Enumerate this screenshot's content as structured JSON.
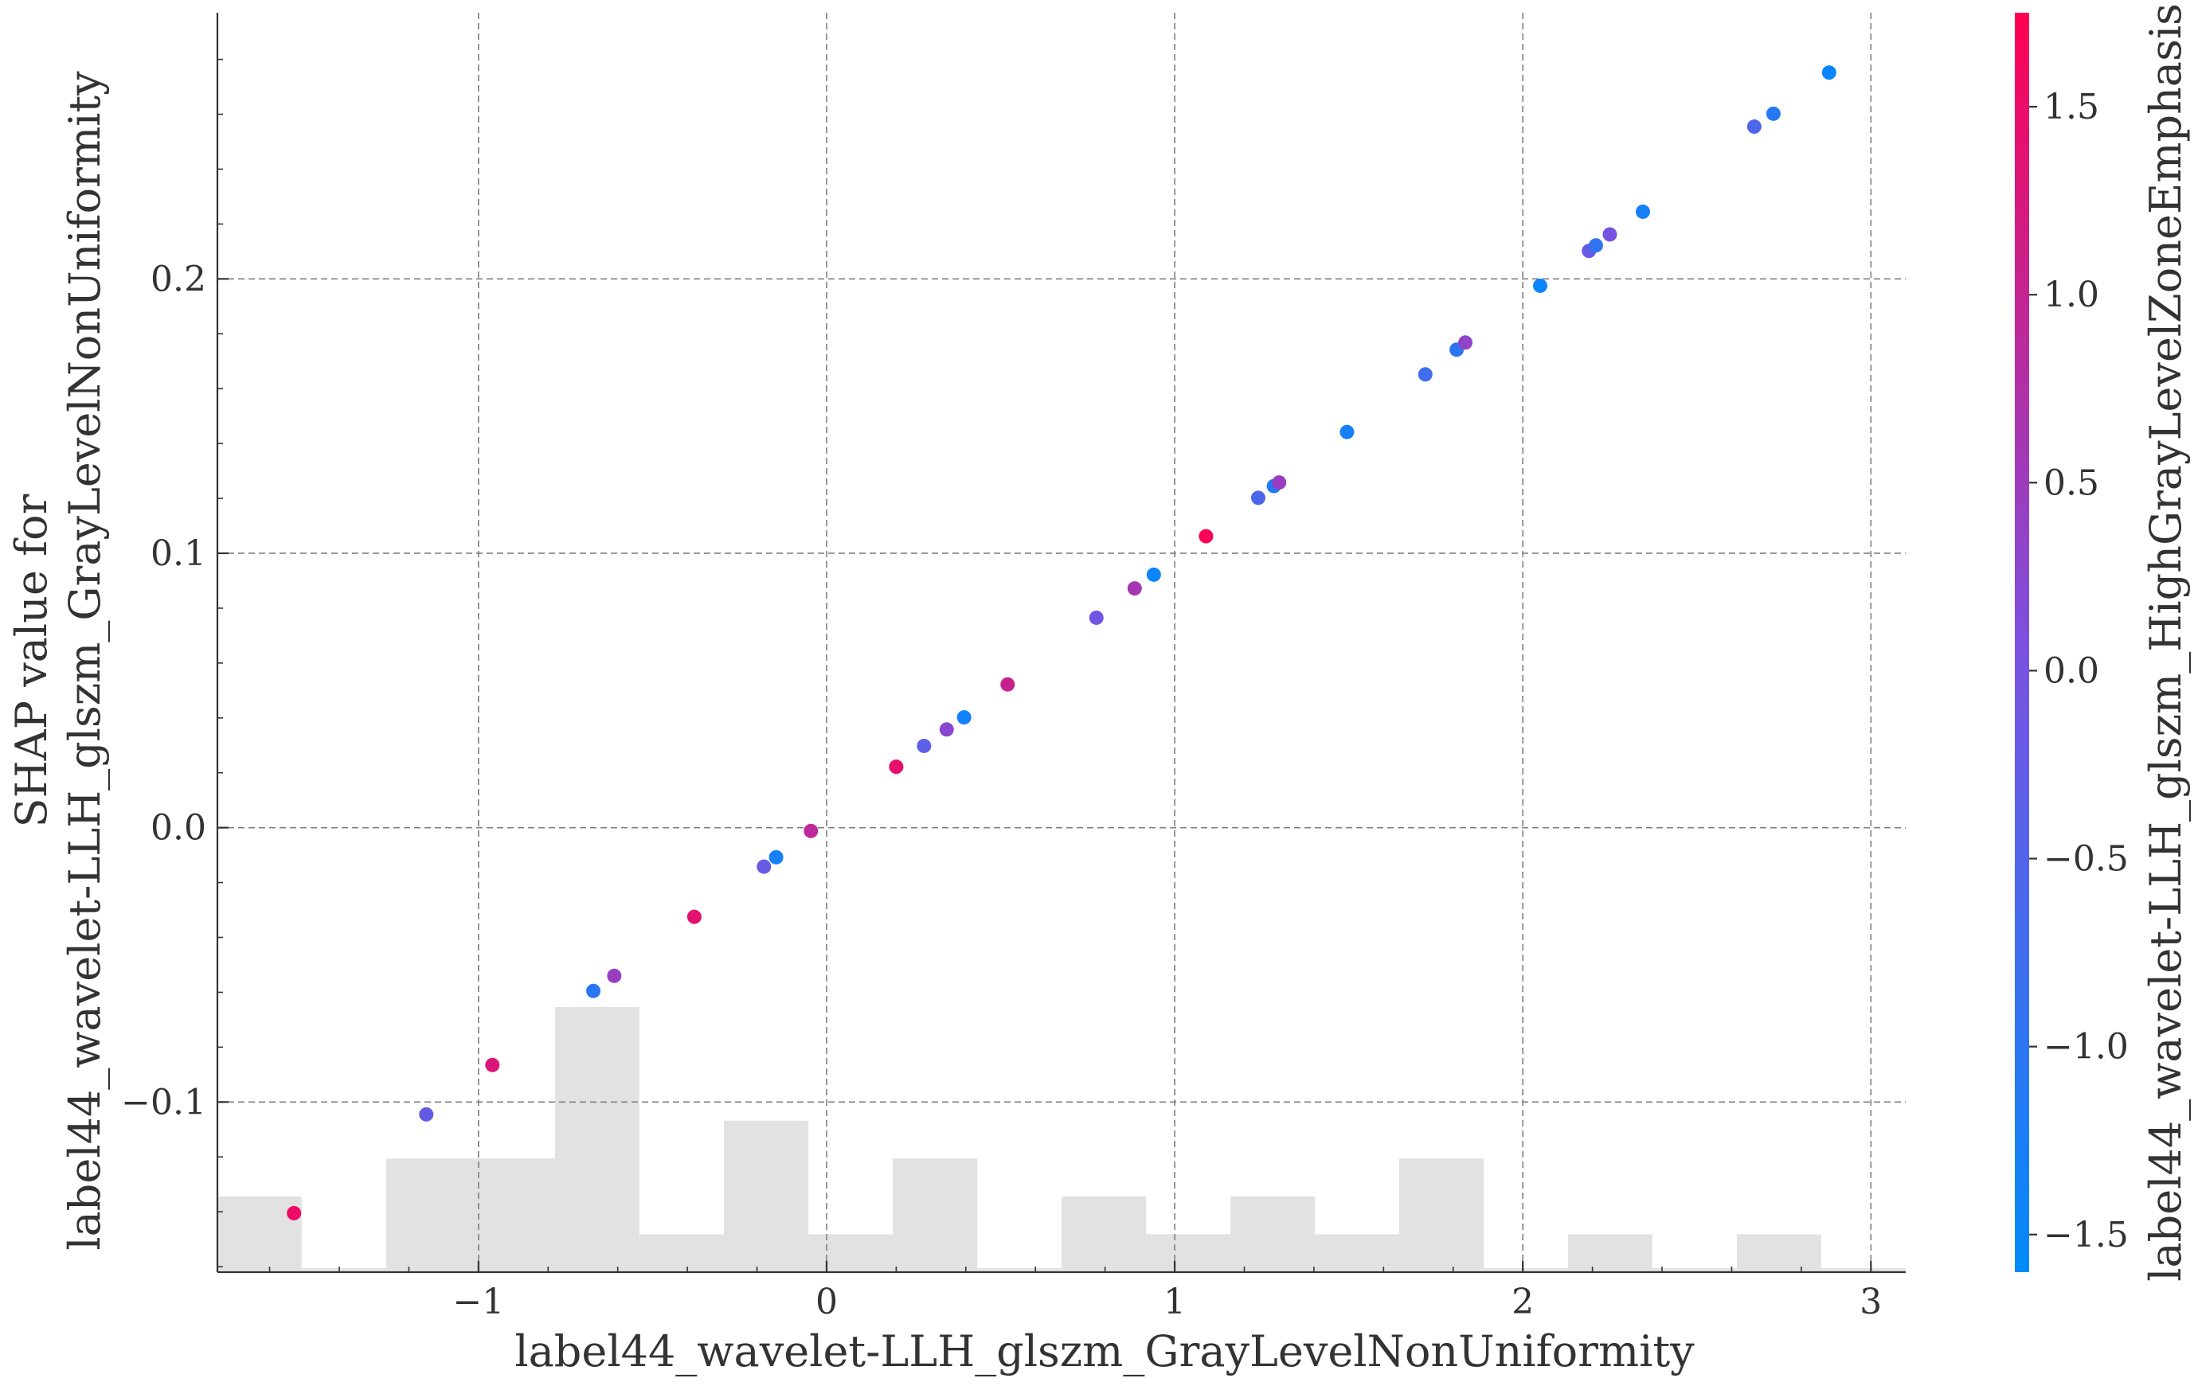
{
  "chart_data": {
    "type": "scatter",
    "xlabel": "label44_wavelet-LLH_glszm_GrayLevelNonUniformity",
    "ylabel_lines": [
      "SHAP value for",
      "label44_wavelet-LLH_glszm_GrayLevelNonUniformity"
    ],
    "xlim": [
      -1.75,
      3.1
    ],
    "ylim": [
      -0.162,
      0.297
    ],
    "xticks": [
      -1,
      0,
      1,
      2,
      3
    ],
    "xtick_labels": [
      "−1",
      "0",
      "1",
      "2",
      "3"
    ],
    "yticks": [
      -0.1,
      0.0,
      0.1,
      0.2
    ],
    "ytick_labels": [
      "−0.1",
      "0.0",
      "0.1",
      "0.2"
    ],
    "grid": true,
    "colorbar": {
      "label": "label44_wavelet-LLH_glszm_HighGrayLevelZoneEmphasis",
      "range": [
        -1.6,
        1.75
      ],
      "ticks": [
        -1.5,
        -1.0,
        -0.5,
        0.0,
        0.5,
        1.0,
        1.5
      ],
      "tick_labels": [
        "−1.5",
        "−1.0",
        "−0.5",
        "0.0",
        "0.5",
        "1.0",
        "1.5"
      ],
      "colors": [
        "#008afb",
        "#7c50e0",
        "#ff0052"
      ]
    },
    "histogram": {
      "bin_edges": [
        -1.75,
        -1.508,
        -1.265,
        -1.022,
        -0.78,
        -0.538,
        -0.295,
        -0.052,
        0.19,
        0.433,
        0.675,
        0.918,
        1.16,
        1.403,
        1.645,
        1.888,
        2.13,
        2.372,
        2.615,
        2.857,
        3.1
      ],
      "counts": [
        2,
        0,
        3,
        3,
        7,
        1,
        4,
        1,
        3,
        0,
        2,
        1,
        2,
        1,
        3,
        0,
        1,
        0,
        1,
        0
      ]
    },
    "series": [
      {
        "points": [
          {
            "x": -1.53,
            "y": -0.1405,
            "c": 1.55
          },
          {
            "x": -1.15,
            "y": -0.1045,
            "c": -0.25
          },
          {
            "x": -0.96,
            "y": -0.0865,
            "c": 1.3
          },
          {
            "x": -0.67,
            "y": -0.0595,
            "c": -1.05
          },
          {
            "x": -0.61,
            "y": -0.054,
            "c": 0.45
          },
          {
            "x": -0.38,
            "y": -0.0325,
            "c": 1.4
          },
          {
            "x": -0.18,
            "y": -0.0142,
            "c": -0.2
          },
          {
            "x": -0.145,
            "y": -0.0108,
            "c": -1.3
          },
          {
            "x": -0.045,
            "y": -0.0012,
            "c": 0.9
          },
          {
            "x": 0.2,
            "y": 0.0222,
            "c": 1.45
          },
          {
            "x": 0.28,
            "y": 0.0298,
            "c": -0.35
          },
          {
            "x": 0.345,
            "y": 0.0358,
            "c": 0.25
          },
          {
            "x": 0.395,
            "y": 0.0402,
            "c": -1.35
          },
          {
            "x": 0.52,
            "y": 0.0522,
            "c": 1.05
          },
          {
            "x": 0.775,
            "y": 0.0765,
            "c": -0.05
          },
          {
            "x": 0.885,
            "y": 0.0872,
            "c": 0.6
          },
          {
            "x": 0.94,
            "y": 0.0922,
            "c": -1.45
          },
          {
            "x": 1.09,
            "y": 0.1062,
            "c": 1.7
          },
          {
            "x": 1.24,
            "y": 0.1202,
            "c": -0.6
          },
          {
            "x": 1.285,
            "y": 0.1245,
            "c": -1.1
          },
          {
            "x": 1.3,
            "y": 0.1258,
            "c": 0.45
          },
          {
            "x": 1.495,
            "y": 0.1442,
            "c": -1.3
          },
          {
            "x": 1.72,
            "y": 0.1652,
            "c": -0.75
          },
          {
            "x": 1.81,
            "y": 0.1742,
            "c": -1.0
          },
          {
            "x": 1.835,
            "y": 0.1768,
            "c": 0.35
          },
          {
            "x": 2.05,
            "y": 0.1975,
            "c": -1.45
          },
          {
            "x": 2.19,
            "y": 0.2102,
            "c": -0.25
          },
          {
            "x": 2.21,
            "y": 0.2122,
            "c": -0.95
          },
          {
            "x": 2.25,
            "y": 0.2162,
            "c": 0.0
          },
          {
            "x": 2.345,
            "y": 0.2245,
            "c": -1.3
          },
          {
            "x": 2.665,
            "y": 0.2555,
            "c": -0.55
          },
          {
            "x": 2.72,
            "y": 0.2602,
            "c": -1.1
          },
          {
            "x": 2.88,
            "y": 0.2752,
            "c": -1.45
          }
        ]
      }
    ]
  }
}
